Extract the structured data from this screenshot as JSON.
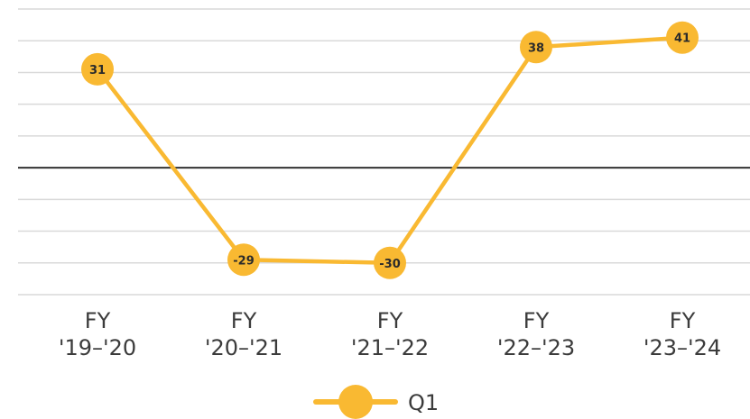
{
  "chart_data": {
    "type": "line",
    "categories": [
      [
        "FY",
        "'19–'20"
      ],
      [
        "FY",
        "'20–'21"
      ],
      [
        "FY",
        "'21–'22"
      ],
      [
        "FY",
        "'22–'23"
      ],
      [
        "FY",
        "'23–'24"
      ]
    ],
    "series": [
      {
        "name": "Q1",
        "values": [
          31,
          -29,
          -30,
          38,
          41
        ],
        "color": "#f9b932"
      }
    ],
    "gridlines": [
      50,
      40,
      30,
      20,
      10,
      0,
      -10,
      -20,
      -30,
      -40
    ],
    "zero_line": 0,
    "ylim": [
      -40,
      50
    ],
    "grid": true,
    "legend": "bottom-center",
    "colors": {
      "series": "#f9b932",
      "grid": "#d9d9d9",
      "zero": "#333333"
    }
  }
}
